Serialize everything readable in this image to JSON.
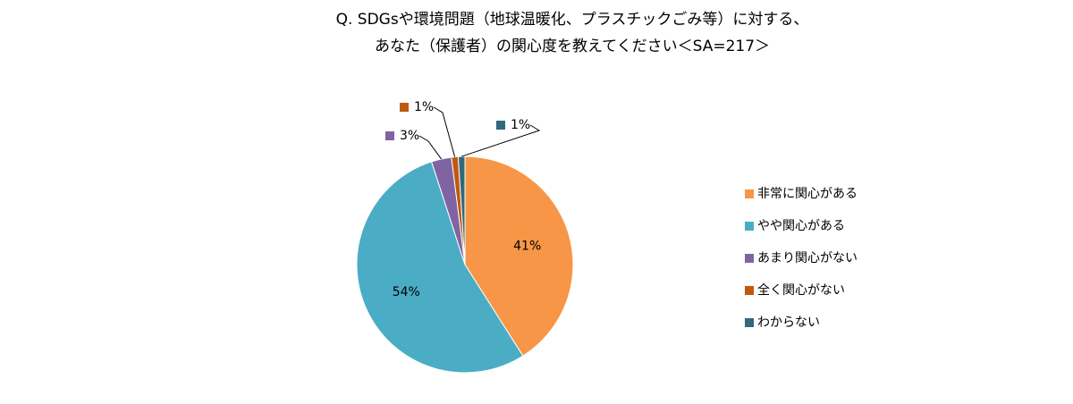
{
  "chart_data": {
    "type": "pie",
    "title": [
      "Q. SDGsや環境問題（地球温暖化、プラスチックごみ等）に対する、",
      "あなた（保護者）の関心度を教えてください＜SA=217＞"
    ],
    "categories": [
      "非常に関心がある",
      "やや関心がある",
      "あまり関心がない",
      "全く関心がない",
      "わからない"
    ],
    "values": [
      41,
      54,
      3,
      1,
      1
    ],
    "value_labels": [
      "41%",
      "54%",
      "3%",
      "1%",
      "1%"
    ],
    "colors": [
      "#f79646",
      "#4bacc6",
      "#8064a2",
      "#c0590f",
      "#31697a"
    ],
    "legend": "right"
  }
}
